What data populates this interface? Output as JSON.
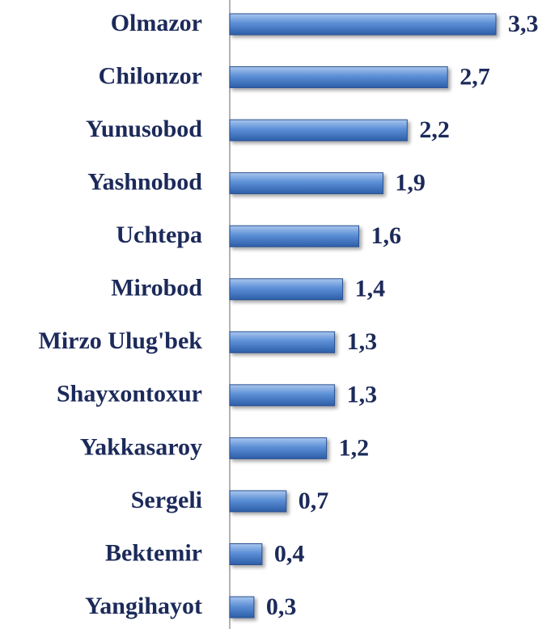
{
  "chart_data": {
    "type": "bar",
    "orientation": "horizontal",
    "categories": [
      "Olmazor",
      "Chilonzor",
      "Yunusobod",
      "Yashnobod",
      "Uchtepa",
      "Mirobod",
      "Mirzo Ulug'bek",
      "Shayxontoxur",
      "Yakkasaroy",
      "Sergeli",
      "Bektemir",
      "Yangihayot"
    ],
    "values": [
      3.3,
      2.7,
      2.2,
      1.9,
      1.6,
      1.4,
      1.3,
      1.3,
      1.2,
      0.7,
      0.4,
      0.3
    ],
    "value_labels": [
      "3,3",
      "2,7",
      "2,2",
      "1,9",
      "1,6",
      "1,4",
      "1,3",
      "1,3",
      "1,2",
      "0,7",
      "0,4",
      "0,3"
    ],
    "color": "#4a7fcc"
  }
}
